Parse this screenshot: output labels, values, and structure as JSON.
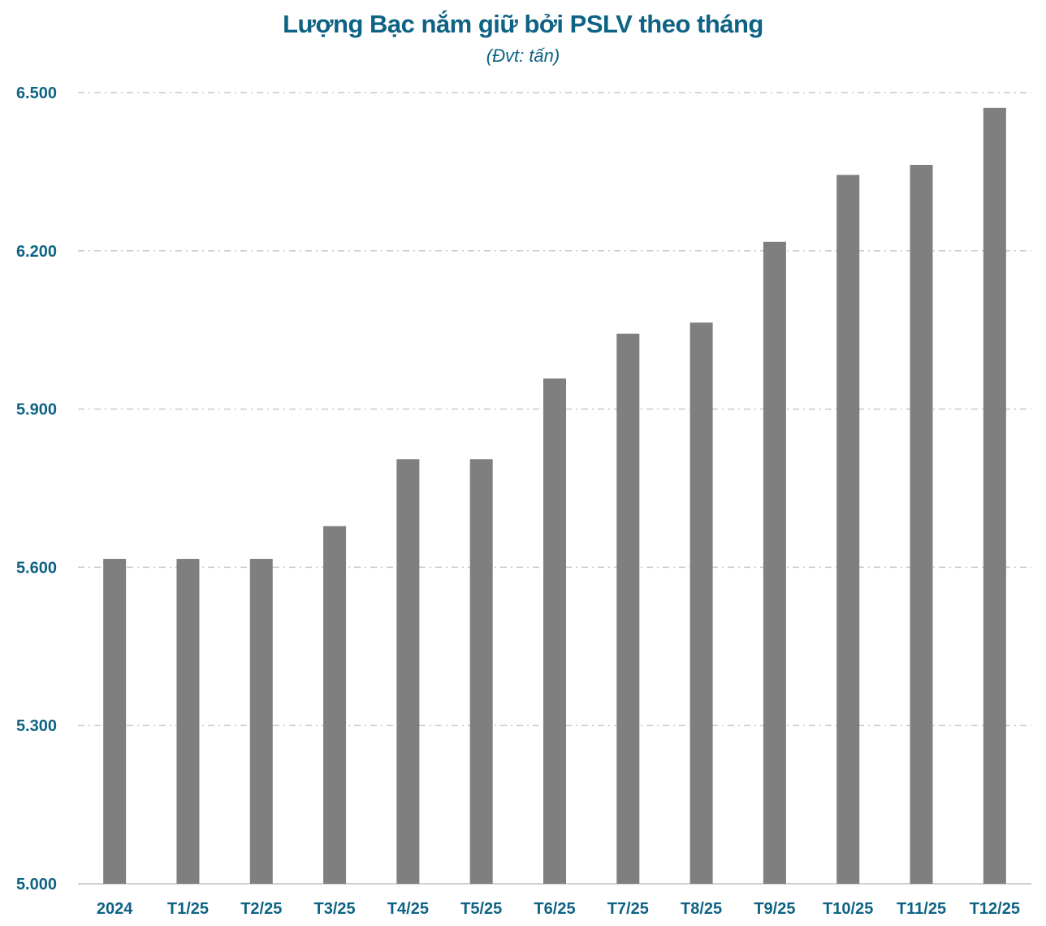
{
  "chart_data": {
    "type": "bar",
    "title": "Lượng Bạc nắm giữ bởi PSLV theo tháng",
    "subtitle": "(Đvt: tấn)",
    "categories": [
      "2024",
      "T1/25",
      "T2/25",
      "T3/25",
      "T4/25",
      "T5/25",
      "T6/25",
      "T7/25",
      "T8/25",
      "T9/25",
      "T10/25",
      "T11/25",
      "T12/25"
    ],
    "values": [
      5616,
      5616,
      5616,
      5678,
      5805,
      5805,
      5958,
      6043,
      6064,
      6217,
      6344,
      6363,
      6471
    ],
    "ylim": [
      5000,
      6500
    ],
    "yticks": [
      5000,
      5300,
      5600,
      5900,
      6200,
      6500
    ],
    "ytick_labels": [
      "5.000",
      "5.300",
      "5.600",
      "5.900",
      "6.200",
      "6.500"
    ],
    "grid": true,
    "bar_color": "#7f7f7f",
    "text_color": "#0e6384",
    "grid_color": "#c8c8c8"
  }
}
